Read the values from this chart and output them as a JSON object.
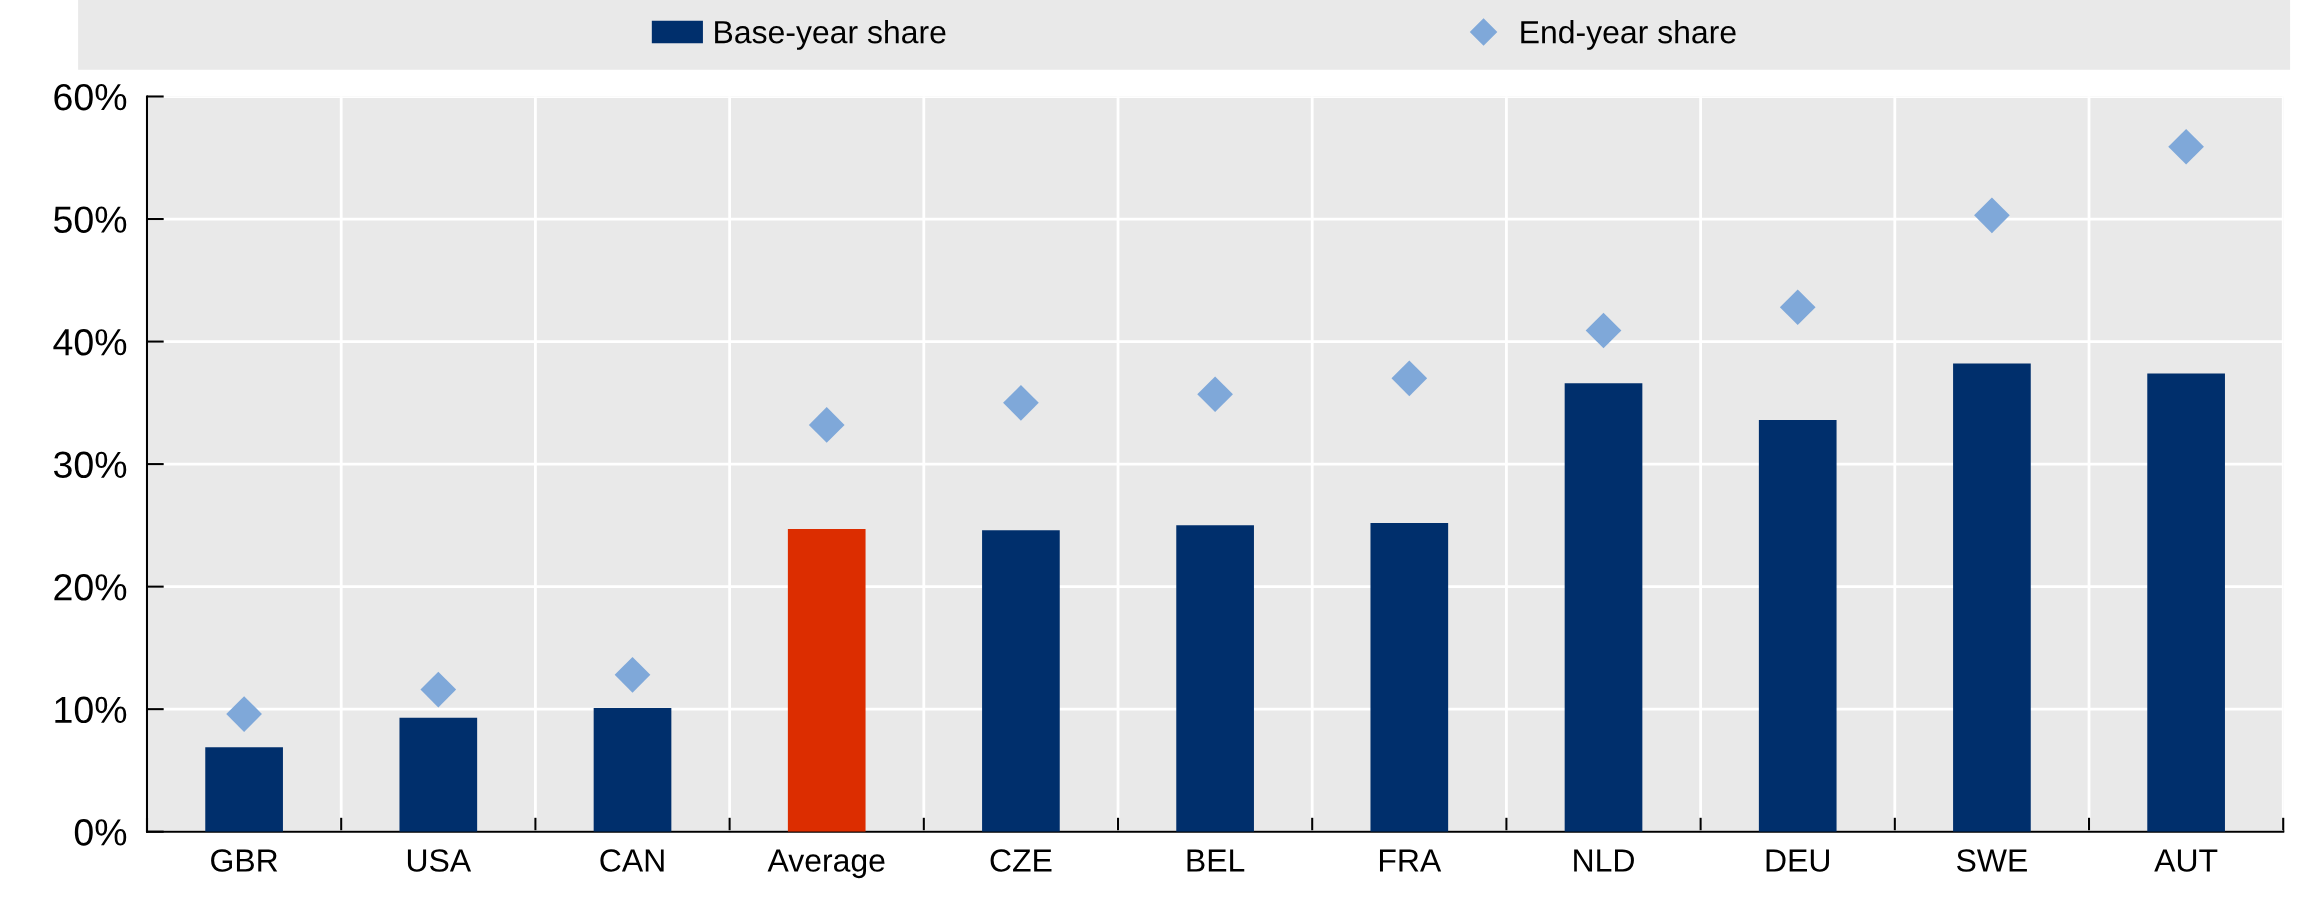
{
  "chart_data": {
    "type": "bar",
    "categories": [
      "GBR",
      "USA",
      "CAN",
      "Average",
      "CZE",
      "BEL",
      "FRA",
      "NLD",
      "DEU",
      "SWE",
      "AUT"
    ],
    "series": [
      {
        "name": "Base-year share",
        "color": "#002f6c",
        "colors": [
          "#002f6c",
          "#002f6c",
          "#002f6c",
          "#dc2d00",
          "#002f6c",
          "#002f6c",
          "#002f6c",
          "#002f6c",
          "#002f6c",
          "#002f6c",
          "#002f6c"
        ],
        "values": [
          6.9,
          9.3,
          10.1,
          24.7,
          24.6,
          25.0,
          25.2,
          36.6,
          33.6,
          38.2,
          37.4
        ]
      },
      {
        "name": "End-year share",
        "type": "scatter",
        "marker": "diamond",
        "color": "#7fa8d9",
        "values": [
          9.6,
          11.6,
          12.8,
          33.2,
          35.0,
          35.7,
          37.0,
          40.9,
          42.8,
          50.3,
          55.9
        ]
      }
    ],
    "ylim": [
      0,
      60
    ],
    "yticks": [
      {
        "value": 0,
        "label": "0%"
      },
      {
        "value": 10,
        "label": "10%"
      },
      {
        "value": 20,
        "label": "20%"
      },
      {
        "value": 30,
        "label": "30%"
      },
      {
        "value": 40,
        "label": "40%"
      },
      {
        "value": 50,
        "label": "50%"
      },
      {
        "value": 60,
        "label": "60%"
      }
    ],
    "grid": true,
    "legend": "top"
  }
}
